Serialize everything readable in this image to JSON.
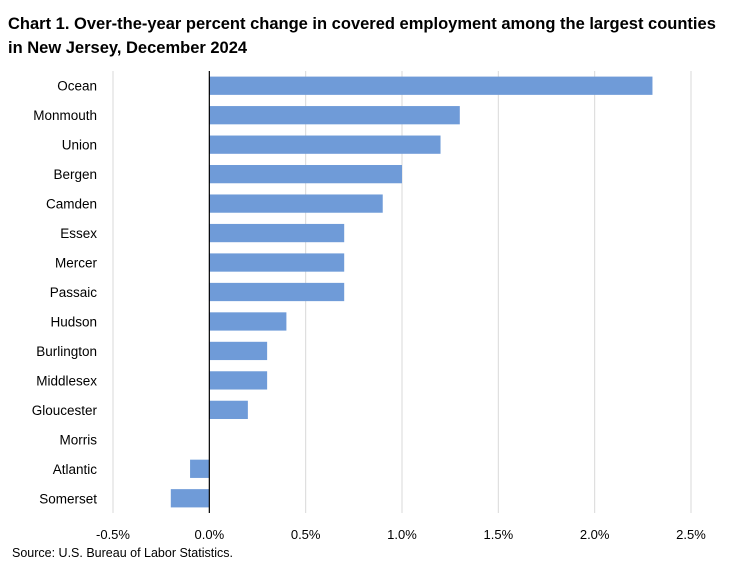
{
  "title": "Chart 1. Over-the-year percent change in covered employment among the largest counties in New Jersey, December 2024",
  "source": "Source: U.S. Bureau of Labor Statistics.",
  "colors": {
    "bar": "#6f9bd8",
    "grid": "#d9d9d9",
    "axis": "#000000"
  },
  "chart_data": {
    "type": "bar",
    "orientation": "horizontal",
    "categories": [
      "Ocean",
      "Monmouth",
      "Union",
      "Bergen",
      "Camden",
      "Essex",
      "Mercer",
      "Passaic",
      "Hudson",
      "Burlington",
      "Middlesex",
      "Gloucester",
      "Morris",
      "Atlantic",
      "Somerset"
    ],
    "values": [
      2.3,
      1.3,
      1.2,
      1.0,
      0.9,
      0.7,
      0.7,
      0.7,
      0.4,
      0.3,
      0.3,
      0.2,
      0.0,
      -0.1,
      -0.2
    ],
    "unit": "%",
    "xlim": [
      -0.5,
      2.5
    ],
    "xticks": [
      -0.5,
      0.0,
      0.5,
      1.0,
      1.5,
      2.0,
      2.5
    ],
    "xtick_labels": [
      "-0.5%",
      "0.0%",
      "0.5%",
      "1.0%",
      "1.5%",
      "2.0%",
      "2.5%"
    ],
    "grid": "vertical",
    "legend": "none"
  }
}
